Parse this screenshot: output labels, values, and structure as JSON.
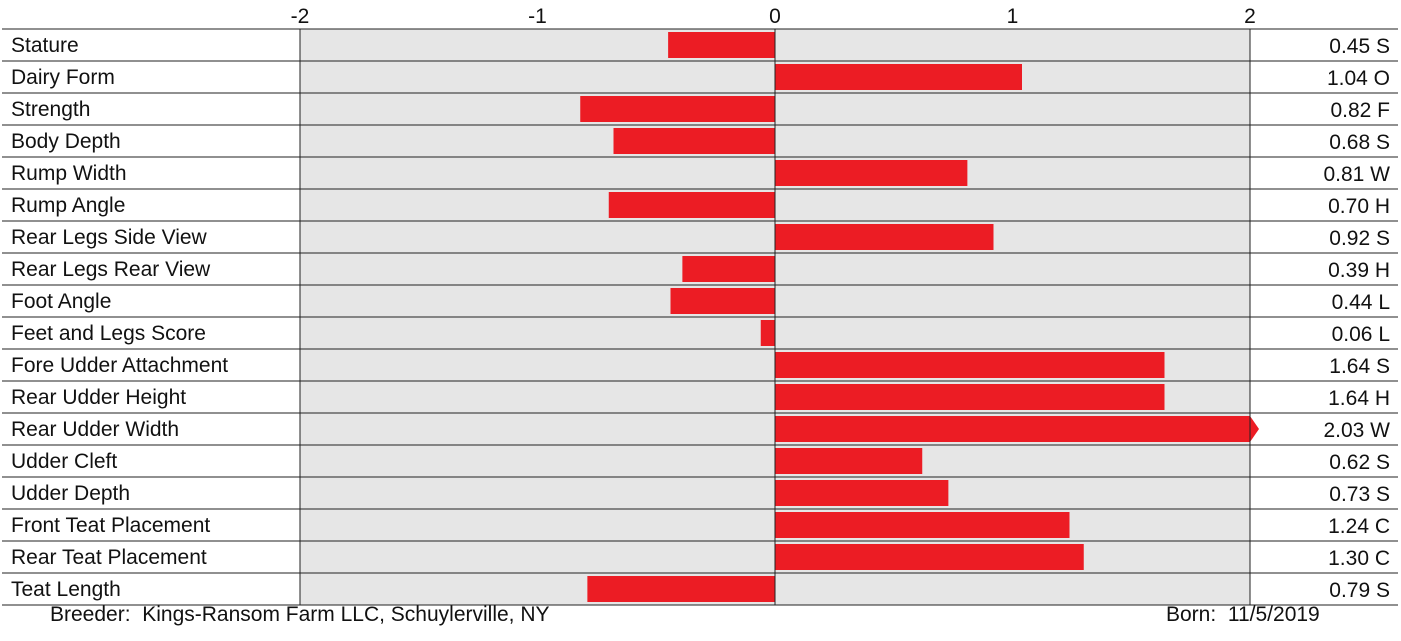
{
  "chart_data": {
    "type": "bar",
    "orientation": "horizontal",
    "xlim": [
      -2,
      2
    ],
    "x_ticks": [
      "-2",
      "-1",
      "0",
      "1",
      "2"
    ],
    "grid": false,
    "bar_color": "#ec1c24",
    "panel_color": "#e6e6e6",
    "categories": [
      "Stature",
      "Dairy Form",
      "Strength",
      "Body Depth",
      "Rump Width",
      "Rump Angle",
      "Rear Legs Side View",
      "Rear Legs Rear View",
      "Foot Angle",
      "Feet and Legs Score",
      "Fore Udder Attachment",
      "Rear Udder Height",
      "Rear Udder Width",
      "Udder Cleft",
      "Udder Depth",
      "Front Teat Placement",
      "Rear Teat Placement",
      "Teat Length"
    ],
    "values": [
      -0.45,
      1.04,
      -0.82,
      -0.68,
      0.81,
      -0.7,
      0.92,
      -0.39,
      -0.44,
      -0.06,
      1.64,
      1.64,
      2.03,
      0.62,
      0.73,
      1.24,
      1.3,
      -0.79
    ],
    "value_labels": [
      "0.45 S",
      "1.04 O",
      "0.82 F",
      "0.68 S",
      "0.81 W",
      "0.70 H",
      "0.92 S",
      "0.39 H",
      "0.44 L",
      "0.06 L",
      "1.64 S",
      "1.64 H",
      "2.03 W",
      "0.62 S",
      "0.73 S",
      "1.24 C",
      "1.30 C",
      "0.79 S"
    ]
  },
  "footer": {
    "breeder": "Breeder:  Kings-Ransom Farm LLC, Schuylerville, NY",
    "born": "Born:  11/5/2019"
  }
}
